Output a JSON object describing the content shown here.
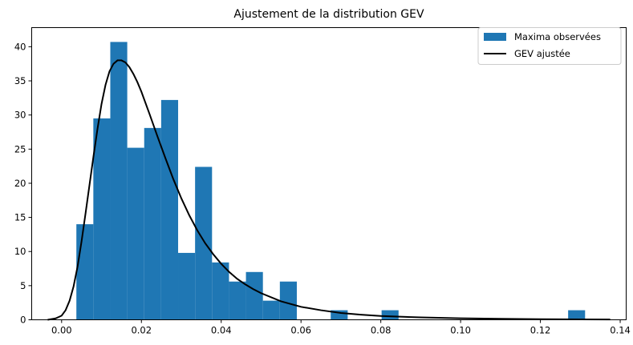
{
  "chart_data": {
    "type": "histogram",
    "title": "Ajustement de la distribution GEV",
    "xlabel": "",
    "ylabel": "",
    "xlim": [
      -0.0075,
      0.1415
    ],
    "ylim": [
      0,
      42.8
    ],
    "x_ticks": [
      0.0,
      0.02,
      0.04,
      0.06,
      0.08,
      0.1,
      0.12,
      0.14
    ],
    "x_tick_labels": [
      "0.00",
      "0.02",
      "0.04",
      "0.06",
      "0.08",
      "0.10",
      "0.12",
      "0.14"
    ],
    "y_ticks": [
      0,
      5,
      10,
      15,
      20,
      25,
      30,
      35,
      40
    ],
    "y_tick_labels": [
      "0",
      "5",
      "10",
      "15",
      "20",
      "25",
      "30",
      "35",
      "40"
    ],
    "legend": {
      "position": "upper right",
      "entries": [
        {
          "label": "Maxima observées",
          "kind": "patch",
          "color": "#1f77b4"
        },
        {
          "label": "GEV ajustée",
          "kind": "line",
          "color": "#000000"
        }
      ]
    },
    "histogram": {
      "name": "Maxima observées",
      "color": "#1f77b4",
      "bin_start": 0.0037,
      "bin_width": 0.00425,
      "values": [
        14.0,
        29.5,
        40.7,
        25.2,
        28.1,
        32.2,
        9.8,
        22.4,
        8.4,
        5.6,
        7.0,
        2.8,
        5.6,
        0,
        0,
        1.4,
        0,
        0,
        1.4,
        0,
        0,
        0,
        0,
        0,
        0,
        0,
        0,
        0,
        0,
        1.4
      ]
    },
    "series": [
      {
        "name": "GEV ajustée",
        "type": "line",
        "color": "#000000",
        "x": [
          -0.0035,
          -0.0015,
          0.0,
          0.001,
          0.002,
          0.003,
          0.004,
          0.005,
          0.006,
          0.007,
          0.008,
          0.009,
          0.01,
          0.011,
          0.012,
          0.013,
          0.014,
          0.015,
          0.016,
          0.017,
          0.018,
          0.019,
          0.02,
          0.022,
          0.024,
          0.026,
          0.028,
          0.03,
          0.032,
          0.034,
          0.036,
          0.038,
          0.04,
          0.042,
          0.044,
          0.046,
          0.048,
          0.05,
          0.055,
          0.06,
          0.065,
          0.07,
          0.075,
          0.08,
          0.09,
          0.1,
          0.11,
          0.12,
          0.13,
          0.1375
        ],
        "y": [
          0.0,
          0.2,
          0.6,
          1.4,
          2.8,
          4.9,
          7.8,
          11.5,
          15.6,
          19.8,
          24.0,
          28.0,
          31.6,
          34.4,
          36.4,
          37.5,
          38.0,
          38.0,
          37.7,
          37.0,
          36.0,
          34.8,
          33.4,
          30.2,
          26.9,
          23.7,
          20.6,
          17.8,
          15.3,
          13.1,
          11.2,
          9.6,
          8.2,
          7.0,
          6.0,
          5.2,
          4.5,
          3.9,
          2.7,
          1.9,
          1.4,
          1.0,
          0.75,
          0.55,
          0.35,
          0.22,
          0.14,
          0.09,
          0.06,
          0.04
        ]
      }
    ]
  }
}
